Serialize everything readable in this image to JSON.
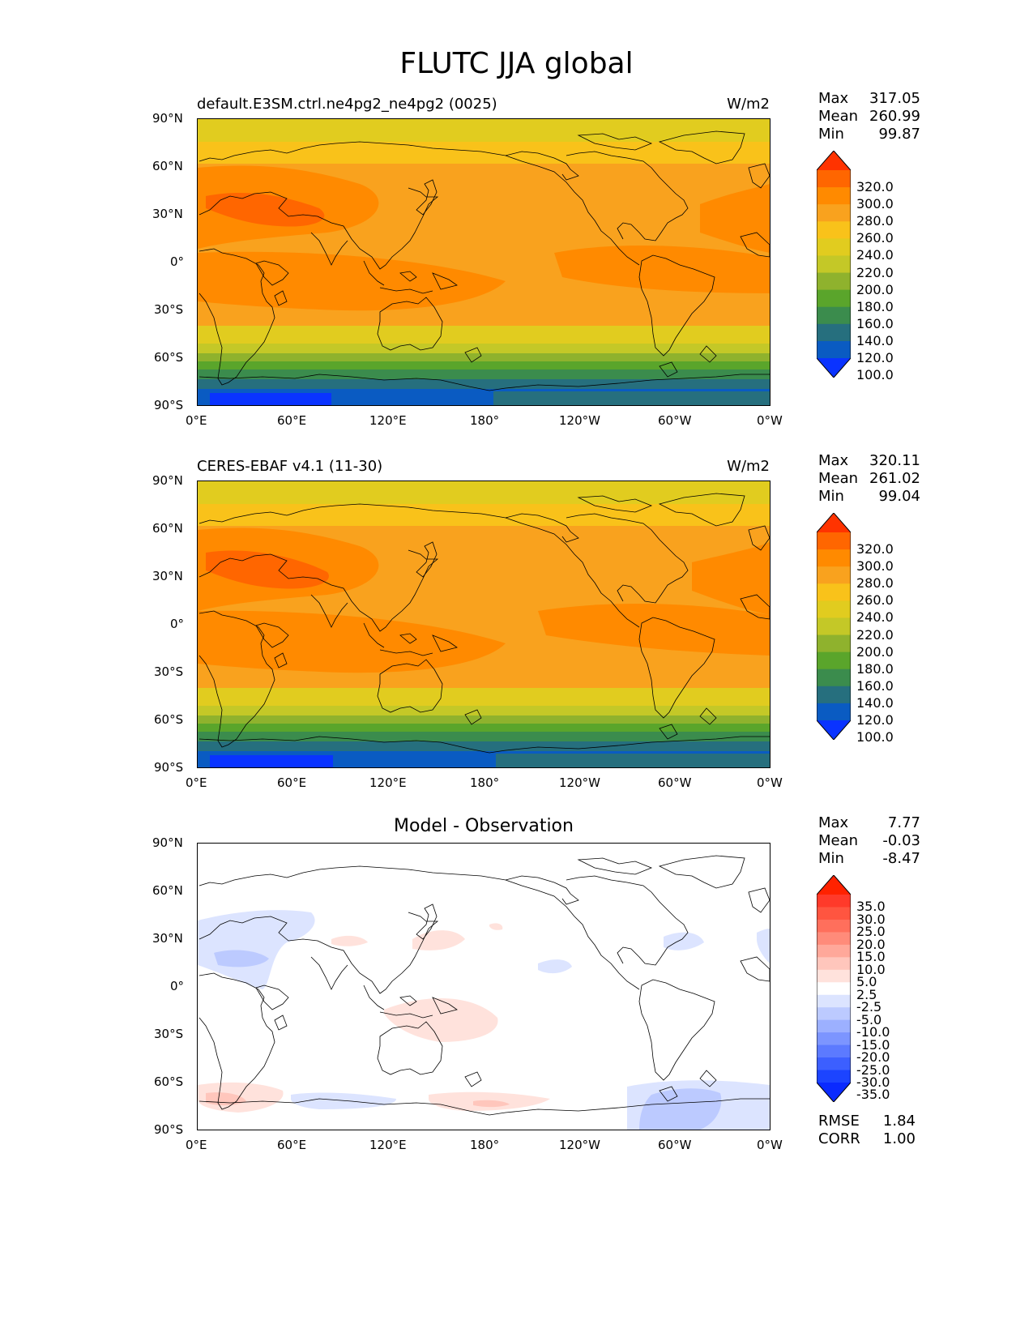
{
  "figure": {
    "title": "FLUTC JJA global"
  },
  "axes": {
    "lat_labels": [
      "90°N",
      "60°N",
      "30°N",
      "0°",
      "30°S",
      "60°S",
      "90°S"
    ],
    "lon_labels": [
      "0°E",
      "60°E",
      "120°E",
      "180°",
      "120°W",
      "60°W",
      "0°W"
    ]
  },
  "panels": [
    {
      "title_left": "default.E3SM.ctrl.ne4pg2_ne4pg2 (0025)",
      "title_right": "W/m2",
      "stats": [
        {
          "label": "Max",
          "value": "317.05"
        },
        {
          "label": "Mean",
          "value": "260.99"
        },
        {
          "label": "Min",
          "value": "99.87"
        }
      ],
      "colorbar": {
        "labels": [
          "320.0",
          "300.0",
          "280.0",
          "260.0",
          "240.0",
          "220.0",
          "200.0",
          "180.0",
          "160.0",
          "140.0",
          "120.0",
          "100.0"
        ],
        "colors": [
          "#ff3300",
          "#ff6600",
          "#ff8a00",
          "#f9a21e",
          "#f9c21a",
          "#e1cc1f",
          "#c4c827",
          "#8fb22d",
          "#5aa52b",
          "#3b8c4d",
          "#266f7e",
          "#0a5bc2",
          "#0a33ff"
        ]
      }
    },
    {
      "title_left": "CERES-EBAF v4.1 (11-30)",
      "title_right": "W/m2",
      "stats": [
        {
          "label": "Max",
          "value": "320.11"
        },
        {
          "label": "Mean",
          "value": "261.02"
        },
        {
          "label": "Min",
          "value": "99.04"
        }
      ],
      "colorbar": {
        "labels": [
          "320.0",
          "300.0",
          "280.0",
          "260.0",
          "240.0",
          "220.0",
          "200.0",
          "180.0",
          "160.0",
          "140.0",
          "120.0",
          "100.0"
        ],
        "colors": [
          "#ff3300",
          "#ff6600",
          "#ff8a00",
          "#f9a21e",
          "#f9c21a",
          "#e1cc1f",
          "#c4c827",
          "#8fb22d",
          "#5aa52b",
          "#3b8c4d",
          "#266f7e",
          "#0a5bc2",
          "#0a33ff"
        ]
      }
    },
    {
      "title_center": "Model - Observation",
      "stats": [
        {
          "label": "Max",
          "value": "7.77"
        },
        {
          "label": "Mean",
          "value": "-0.03"
        },
        {
          "label": "Min",
          "value": "-8.47"
        }
      ],
      "metrics": [
        {
          "label": "RMSE",
          "value": "1.84"
        },
        {
          "label": "CORR",
          "value": "1.00"
        }
      ],
      "colorbar": {
        "labels": [
          "35.0",
          "30.0",
          "25.0",
          "20.0",
          "15.0",
          "10.0",
          "5.0",
          "2.5",
          "-2.5",
          "-5.0",
          "-10.0",
          "-15.0",
          "-20.0",
          "-25.0",
          "-30.0",
          "-35.0"
        ],
        "colors": [
          "#ff2200",
          "#ff3a2a",
          "#ff5540",
          "#ff6f5c",
          "#ff8b7a",
          "#ffa89a",
          "#ffc6bc",
          "#ffe2dc",
          "#ffffff",
          "#dce4ff",
          "#bccaff",
          "#9cb0ff",
          "#7c95ff",
          "#5c7aff",
          "#3c5fff",
          "#1c44ff",
          "#0a2aff"
        ]
      }
    }
  ]
}
